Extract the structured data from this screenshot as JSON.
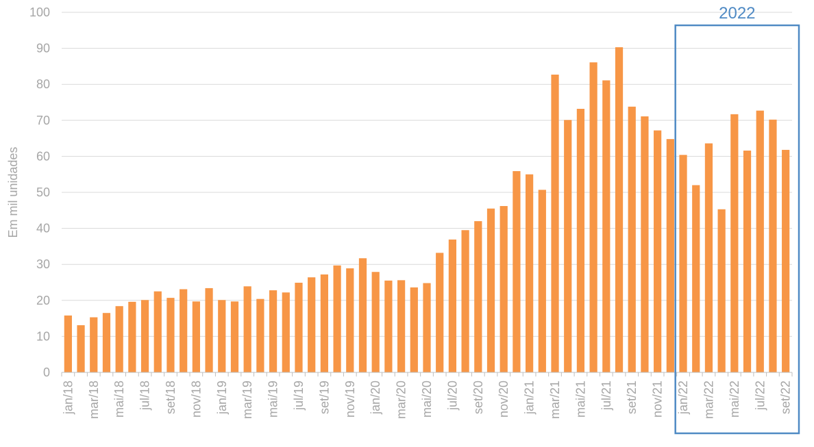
{
  "chart_data": {
    "type": "bar",
    "ylabel": "Em mil unidades",
    "xlabel": "",
    "ylim": [
      0,
      100
    ],
    "yticks": [
      0,
      10,
      20,
      30,
      40,
      50,
      60,
      70,
      80,
      90,
      100
    ],
    "grid": true,
    "legend": "none",
    "bar_color": "#f79646",
    "categories": [
      "jan/18",
      "fev/18",
      "mar/18",
      "abr/18",
      "mai/18",
      "jun/18",
      "jul/18",
      "ago/18",
      "set/18",
      "out/18",
      "nov/18",
      "dez/18",
      "jan/19",
      "fev/19",
      "mar/19",
      "abr/19",
      "mai/19",
      "jun/19",
      "jul/19",
      "ago/19",
      "set/19",
      "out/19",
      "nov/19",
      "dez/19",
      "jan/20",
      "fev/20",
      "mar/20",
      "abr/20",
      "mai/20",
      "jun/20",
      "jul/20",
      "ago/20",
      "set/20",
      "out/20",
      "nov/20",
      "dez/20",
      "jan/21",
      "fev/21",
      "mar/21",
      "abr/21",
      "mai/21",
      "jun/21",
      "jul/21",
      "ago/21",
      "set/21",
      "out/21",
      "nov/21",
      "dez/21",
      "jan/22",
      "fev/22",
      "mar/22",
      "abr/22",
      "mai/22",
      "jun/22",
      "jul/22",
      "ago/22",
      "set/22"
    ],
    "tick_labels_shown": [
      "jan/18",
      "mar/18",
      "mai/18",
      "jul/18",
      "set/18",
      "nov/18",
      "jan/19",
      "mar/19",
      "mai/19",
      "jul/19",
      "set/19",
      "nov/19",
      "jan/20",
      "mar/20",
      "mai/20",
      "jul/20",
      "set/20",
      "nov/20",
      "jan/21",
      "mar/21",
      "mai/21",
      "jul/21",
      "set/21",
      "nov/21",
      "jan/22",
      "mar/22",
      "mai/22",
      "jul/22",
      "set/22"
    ],
    "values": [
      15.8,
      13.1,
      15.3,
      16.5,
      18.4,
      19.6,
      20.1,
      22.5,
      20.7,
      23.1,
      19.7,
      23.4,
      20.1,
      19.7,
      23.9,
      20.4,
      22.8,
      22.2,
      24.9,
      26.4,
      27.2,
      29.7,
      28.9,
      31.7,
      27.9,
      25.5,
      25.6,
      23.6,
      24.8,
      33.2,
      36.9,
      39.5,
      42.0,
      45.5,
      46.2,
      55.9,
      55.0,
      50.7,
      82.7,
      70.1,
      73.2,
      86.1,
      81.1,
      90.3,
      73.8,
      71.1,
      67.2,
      64.8,
      60.4,
      52.0,
      63.6,
      45.3,
      71.7,
      61.6,
      72.7,
      70.2,
      61.8
    ],
    "annotations": [
      {
        "text": "2022",
        "from": "jan/22",
        "to": "set/22",
        "color": "#4f8ac4"
      }
    ]
  }
}
